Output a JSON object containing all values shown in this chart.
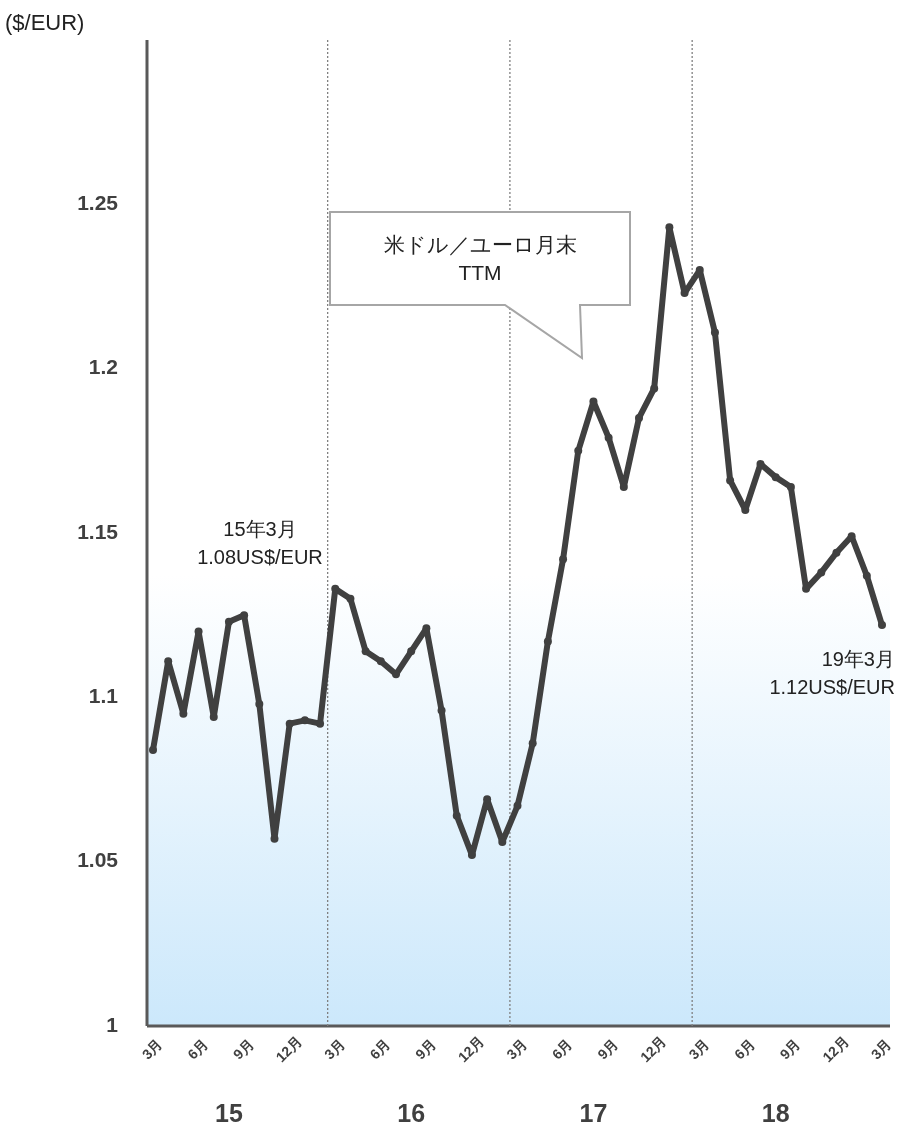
{
  "chart_data": {
    "type": "line",
    "ylabel": "($/EUR)",
    "categories": [
      "3月",
      null,
      null,
      "6月",
      null,
      null,
      "9月",
      null,
      null,
      "12月",
      null,
      null,
      "3月",
      null,
      null,
      "6月",
      null,
      null,
      "9月",
      null,
      null,
      "12月",
      null,
      null,
      "3月",
      null,
      null,
      "6月",
      null,
      null,
      "9月",
      null,
      null,
      "12月",
      null,
      null,
      "3月",
      null,
      null,
      "6月",
      null,
      null,
      "9月",
      null,
      null,
      "12月",
      null,
      null,
      "3月"
    ],
    "series": [
      {
        "name": "米ドル／ユーロ月末\nTTM",
        "color": "#404040",
        "values": [
          1.084,
          1.111,
          1.095,
          1.12,
          1.094,
          1.123,
          1.125,
          1.098,
          1.057,
          1.092,
          1.093,
          1.092,
          1.133,
          1.13,
          1.114,
          1.111,
          1.107,
          1.114,
          1.121,
          1.096,
          1.064,
          1.052,
          1.069,
          1.056,
          1.067,
          1.086,
          1.117,
          1.142,
          1.175,
          1.19,
          1.179,
          1.164,
          1.185,
          1.194,
          1.243,
          1.223,
          1.23,
          1.211,
          1.166,
          1.157,
          1.171,
          1.167,
          1.164,
          1.133,
          1.138,
          1.144,
          1.149,
          1.137,
          1.122
        ]
      }
    ],
    "ylim": [
      1,
      1.3
    ],
    "yticks": [
      1,
      1.05,
      1.1,
      1.15,
      1.2,
      1.25
    ],
    "marker": "circle",
    "line_style": "solid",
    "annotations": [
      "15年3月\n1.08US$/EUR",
      "19年3月\n1.12US$/EUR",
      "15",
      "16",
      "17",
      "18"
    ]
  }
}
